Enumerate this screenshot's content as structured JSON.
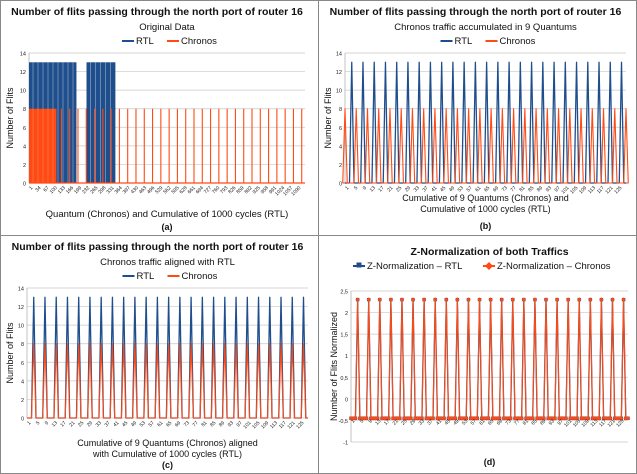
{
  "chart_data": [
    {
      "id": "a",
      "type": "line",
      "title": "Number of flits passing through the north port of router 16",
      "subtitle": "Original Data",
      "caption": "(a)",
      "xlabel": "Quantum (Chronos) and Cumulative of 1000 cycles (RTL)",
      "ylabel": "Number of Flits",
      "ylim": [
        0,
        14
      ],
      "yticks": [
        0,
        2,
        4,
        6,
        8,
        10,
        12,
        14
      ],
      "x_tick_labels": [
        "1",
        "34",
        "67",
        "100",
        "133",
        "166",
        "199",
        "232",
        "265",
        "298",
        "331",
        "364",
        "397",
        "430",
        "463",
        "496",
        "529",
        "562",
        "595",
        "628",
        "661",
        "694",
        "727",
        "760",
        "793",
        "826",
        "859",
        "892",
        "925",
        "958",
        "991",
        "1024",
        "1057",
        "1090"
      ],
      "x_range": [
        1,
        1100
      ],
      "legend": [
        "RTL",
        "Chronos"
      ],
      "series_colors": [
        "#1f4e8c",
        "#ff4a14"
      ],
      "series": [
        {
          "name": "RTL",
          "pattern": "dense blocks at 13",
          "blocks": [
            [
              1,
              190
            ],
            [
              230,
              345
            ]
          ],
          "value": 13
        },
        {
          "name": "Chronos",
          "pattern": "dense block at 8 then periodic spikes to 8",
          "block": [
            1,
            110
          ],
          "value": 8,
          "spike_period": 33,
          "spike_start": 130,
          "spike_end": 1095
        }
      ]
    },
    {
      "id": "b",
      "type": "line",
      "title": "Number of flits passing through the north port of router 16",
      "subtitle": "Chronos traffic accumulated in 9 Quantums",
      "caption": "(b)",
      "xlabel": "Cumulative of 9 Quantums (Chronos) and Cumulative of 1000 cycles (RTL)",
      "ylabel": "Number of Flits",
      "ylim": [
        0,
        14
      ],
      "yticks": [
        0,
        2,
        4,
        6,
        8,
        10,
        12,
        14
      ],
      "x_tick_labels": [
        "1",
        "5",
        "9",
        "13",
        "17",
        "21",
        "25",
        "29",
        "33",
        "37",
        "41",
        "45",
        "49",
        "53",
        "57",
        "61",
        "65",
        "69",
        "73",
        "77",
        "81",
        "85",
        "89",
        "93",
        "97",
        "101",
        "105",
        "109",
        "113",
        "117",
        "121",
        "125"
      ],
      "x_range": [
        1,
        126
      ],
      "legend": [
        "RTL",
        "Chronos"
      ],
      "series_colors": [
        "#1f4e8c",
        "#ff4a14"
      ],
      "series": [
        {
          "name": "RTL",
          "spikes_at": [
            4,
            9,
            14,
            19,
            24,
            29,
            34,
            39,
            44,
            49,
            54,
            59,
            64,
            69,
            74,
            79,
            84,
            89,
            94,
            99,
            104,
            109,
            114,
            119,
            124
          ],
          "spike_value": 13
        },
        {
          "name": "Chronos",
          "spikes_at": [
            1,
            6,
            11,
            16,
            21,
            26,
            31,
            36,
            41,
            46,
            51,
            56,
            61,
            66,
            71,
            76,
            81,
            86,
            91,
            96,
            101,
            106,
            111,
            116,
            121,
            126
          ],
          "spike_value": 8
        }
      ]
    },
    {
      "id": "c",
      "type": "line",
      "title": "Number of flits passing through the north port of router 16",
      "subtitle": "Chronos traffic aligned with RTL",
      "caption": "(c)",
      "xlabel": "Cumulative of 9 Quantums (Chronos) aligned with Cumulative of 1000 cycles (RTL)",
      "ylabel": "Number of Flits",
      "ylim": [
        0,
        14
      ],
      "yticks": [
        0,
        2,
        4,
        6,
        8,
        10,
        12,
        14
      ],
      "x_tick_labels": [
        "1",
        "5",
        "9",
        "13",
        "17",
        "21",
        "25",
        "29",
        "33",
        "37",
        "41",
        "45",
        "49",
        "53",
        "57",
        "61",
        "65",
        "69",
        "73",
        "77",
        "81",
        "85",
        "89",
        "93",
        "97",
        "101",
        "105",
        "109",
        "113",
        "117",
        "121",
        "125"
      ],
      "x_range": [
        1,
        126
      ],
      "legend": [
        "RTL",
        "Chronos"
      ],
      "series_colors": [
        "#1f4e8c",
        "#ff4a14"
      ],
      "series": [
        {
          "name": "RTL",
          "spikes_at": [
            4,
            9,
            14,
            19,
            24,
            29,
            34,
            39,
            44,
            49,
            54,
            59,
            64,
            69,
            74,
            79,
            84,
            89,
            94,
            99,
            104,
            109,
            114,
            119,
            124
          ],
          "spike_value": 13
        },
        {
          "name": "Chronos",
          "spikes_at": [
            4,
            9,
            14,
            19,
            24,
            29,
            34,
            39,
            44,
            49,
            54,
            59,
            64,
            69,
            74,
            79,
            84,
            89,
            94,
            99,
            104,
            109,
            114,
            119,
            124
          ],
          "spike_value": 8
        }
      ]
    },
    {
      "id": "d",
      "type": "line",
      "title": "Z-Normalization of both Traffics",
      "subtitle": "",
      "caption": "(d)",
      "xlabel": "",
      "ylabel": "Number of Flits Normalized",
      "ylim": [
        -1,
        2.5
      ],
      "yticks": [
        -1,
        -0.5,
        0,
        0.5,
        1,
        1.5,
        2,
        2.5
      ],
      "x_tick_labels": [
        "1",
        "5",
        "9",
        "13",
        "17",
        "21",
        "25",
        "29",
        "33",
        "37",
        "41",
        "45",
        "49",
        "53",
        "57",
        "61",
        "65",
        "69",
        "73",
        "77",
        "81",
        "85",
        "89",
        "93",
        "97",
        "101",
        "105",
        "109",
        "113",
        "117",
        "121",
        "125"
      ],
      "x_range": [
        1,
        126
      ],
      "legend": [
        "Z-Normalization – RTL",
        "Z-Normalization – Chronos"
      ],
      "series_colors": [
        "#1f4e8c",
        "#ff4a14"
      ],
      "series": [
        {
          "name": "Z-Normalization – RTL",
          "spikes_at": [
            4,
            9,
            14,
            19,
            24,
            29,
            34,
            39,
            44,
            49,
            54,
            59,
            64,
            69,
            74,
            79,
            84,
            89,
            94,
            99,
            104,
            109,
            114,
            119,
            124
          ],
          "spike_value": 2.3,
          "base_value": -0.45
        },
        {
          "name": "Z-Normalization – Chronos",
          "spikes_at": [
            4,
            9,
            14,
            19,
            24,
            29,
            34,
            39,
            44,
            49,
            54,
            59,
            64,
            69,
            74,
            79,
            84,
            89,
            94,
            99,
            104,
            109,
            114,
            119,
            124
          ],
          "spike_value": 2.3,
          "base_value": -0.45
        }
      ]
    }
  ]
}
